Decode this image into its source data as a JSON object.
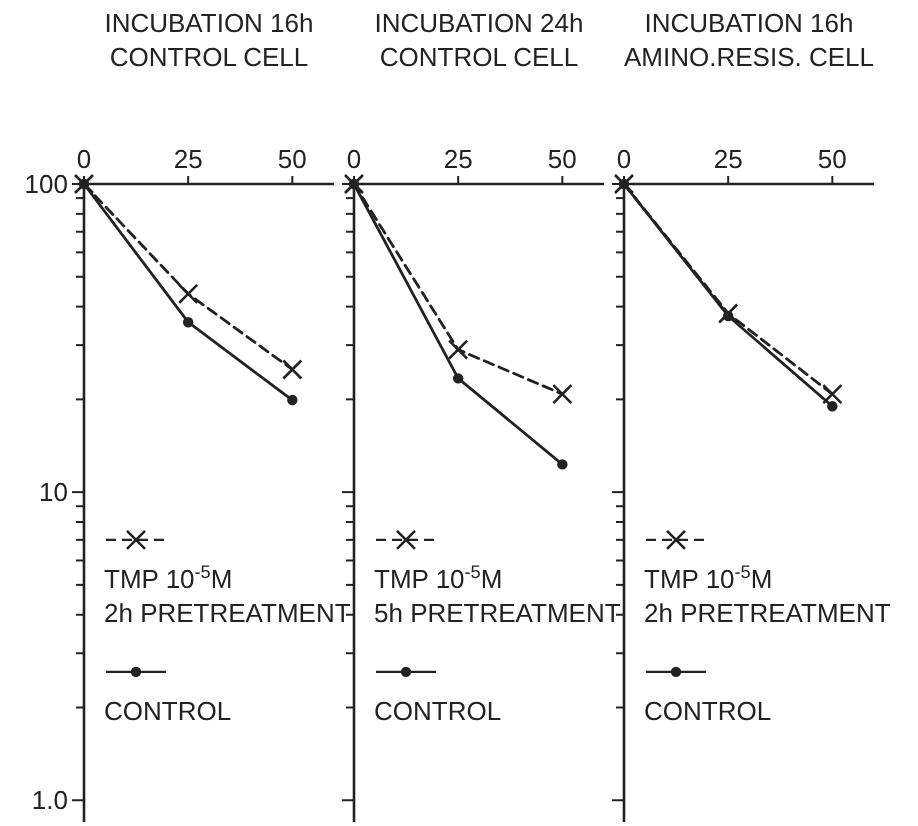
{
  "chart_data": [
    {
      "type": "line",
      "title": "INCUBATION 16h",
      "subtitle": "CONTROL CELL",
      "log": "y",
      "xlim": [
        0,
        60
      ],
      "xticks": [
        0,
        25,
        50
      ],
      "ylim": [
        0.85,
        100
      ],
      "yticks": [
        {
          "value": 1,
          "label": "1.0"
        },
        {
          "value": 2,
          "label": null
        },
        {
          "value": 3,
          "label": null
        },
        {
          "value": 4,
          "label": null
        },
        {
          "value": 5,
          "label": null
        },
        {
          "value": 6,
          "label": null
        },
        {
          "value": 7,
          "label": null
        },
        {
          "value": 8,
          "label": null
        },
        {
          "value": 9,
          "label": null
        },
        {
          "value": 10,
          "label": "10"
        },
        {
          "value": 20,
          "label": null
        },
        {
          "value": 30,
          "label": null
        },
        {
          "value": 40,
          "label": null
        },
        {
          "value": 50,
          "label": null
        },
        {
          "value": 60,
          "label": null
        },
        {
          "value": 70,
          "label": null
        },
        {
          "value": 80,
          "label": null
        },
        {
          "value": 90,
          "label": null
        },
        {
          "value": 100,
          "label": "100"
        }
      ],
      "legend": "bottom",
      "series": [
        {
          "name": "TMP 10$^{-5}$M\n2h PRETREATMENT",
          "color": "#222222",
          "line_style": "dashed",
          "marker": "cross",
          "x": [
            0,
            25,
            50
          ],
          "values": [
            100,
            44,
            25
          ]
        },
        {
          "name": "CONTROL",
          "color": "#222222",
          "line_style": "solid",
          "marker": "circle",
          "x": [
            0,
            25,
            50
          ],
          "values": [
            100,
            35.6,
            19.9
          ]
        }
      ]
    },
    {
      "type": "line",
      "title": "INCUBATION 24h",
      "subtitle": "CONTROL CELL",
      "log": "y",
      "tick_labels": "x",
      "xlim": [
        0,
        60
      ],
      "xticks": [
        0,
        25,
        50
      ],
      "ylim": [
        0.85,
        100
      ],
      "yticks": [
        {
          "value": 1,
          "label": null
        },
        {
          "value": 2,
          "label": null
        },
        {
          "value": 3,
          "label": null
        },
        {
          "value": 4,
          "label": null
        },
        {
          "value": 5,
          "label": null
        },
        {
          "value": 6,
          "label": null
        },
        {
          "value": 7,
          "label": null
        },
        {
          "value": 8,
          "label": null
        },
        {
          "value": 9,
          "label": null
        },
        {
          "value": 10,
          "label": null
        },
        {
          "value": 20,
          "label": null
        },
        {
          "value": 30,
          "label": null
        },
        {
          "value": 40,
          "label": null
        },
        {
          "value": 50,
          "label": null
        },
        {
          "value": 60,
          "label": null
        },
        {
          "value": 70,
          "label": null
        },
        {
          "value": 80,
          "label": null
        },
        {
          "value": 90,
          "label": null
        },
        {
          "value": 100,
          "label": null
        }
      ],
      "legend": "bottom",
      "series": [
        {
          "name": "TMP 10$^{-5}$M\n5h PRETREATMENT",
          "color": "#222222",
          "line_style": "dashed",
          "marker": "cross",
          "x": [
            0,
            25,
            50
          ],
          "values": [
            100,
            29,
            20.8
          ]
        },
        {
          "name": "CONTROL",
          "color": "#222222",
          "line_style": "solid",
          "marker": "circle",
          "x": [
            0,
            25,
            50
          ],
          "values": [
            100,
            23.4,
            12.3
          ]
        }
      ]
    },
    {
      "type": "line",
      "title": "INCUBATION 16h",
      "subtitle": "AMINO.RESIS. CELL",
      "log": "y",
      "tick_labels": "x",
      "xlim": [
        0,
        60
      ],
      "xticks": [
        0,
        25,
        50
      ],
      "ylim": [
        0.85,
        100
      ],
      "yticks": [
        {
          "value": 1,
          "label": null
        },
        {
          "value": 2,
          "label": null
        },
        {
          "value": 3,
          "label": null
        },
        {
          "value": 4,
          "label": null
        },
        {
          "value": 5,
          "label": null
        },
        {
          "value": 6,
          "label": null
        },
        {
          "value": 7,
          "label": null
        },
        {
          "value": 8,
          "label": null
        },
        {
          "value": 9,
          "label": null
        },
        {
          "value": 10,
          "label": null
        },
        {
          "value": 20,
          "label": null
        },
        {
          "value": 30,
          "label": null
        },
        {
          "value": 40,
          "label": null
        },
        {
          "value": 50,
          "label": null
        },
        {
          "value": 60,
          "label": null
        },
        {
          "value": 70,
          "label": null
        },
        {
          "value": 80,
          "label": null
        },
        {
          "value": 90,
          "label": null
        },
        {
          "value": 100,
          "label": null
        }
      ],
      "legend": "bottom",
      "series": [
        {
          "name": "TMP 10$^{-5}$M\n2h PRETREATMENT",
          "color": "#222222",
          "line_style": "dashed",
          "marker": "cross",
          "x": [
            0,
            25,
            50
          ],
          "values": [
            100,
            38,
            20.8
          ]
        },
        {
          "name": "CONTROL",
          "color": "#222222",
          "line_style": "solid",
          "marker": "circle",
          "x": [
            0,
            25,
            50
          ],
          "values": [
            100,
            37.3,
            19
          ]
        }
      ]
    }
  ]
}
